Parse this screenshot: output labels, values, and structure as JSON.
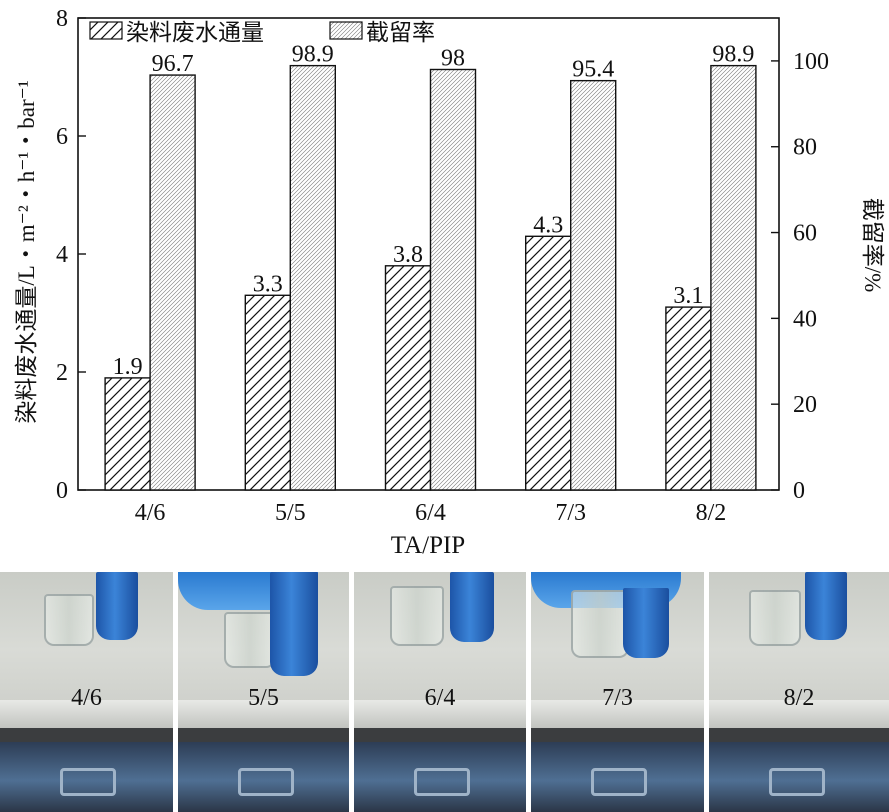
{
  "chart_data": {
    "type": "bar",
    "categories": [
      "4/6",
      "5/5",
      "6/4",
      "7/3",
      "8/2"
    ],
    "xlabel": "TA/PIP",
    "ylabel": "染料废水通量/L・m⁻²・h⁻¹・bar⁻¹",
    "y2label": "截留率/%",
    "ylim": [
      0,
      8
    ],
    "y2lim": [
      0,
      110
    ],
    "yticks": [
      "0",
      "2",
      "4",
      "6",
      "8"
    ],
    "y2ticks": [
      "0",
      "20",
      "40",
      "60",
      "80",
      "100"
    ],
    "legend_position": "top-left",
    "grid": false,
    "series": [
      {
        "name": "染料废水通量",
        "axis": "left",
        "pattern": "diagonal-hatch",
        "values": [
          1.9,
          3.3,
          3.8,
          4.3,
          3.1
        ],
        "labels": [
          "1.9",
          "3.3",
          "3.8",
          "4.3",
          "3.1"
        ]
      },
      {
        "name": "截留率",
        "axis": "right",
        "pattern": "dense-hatch",
        "values": [
          96.7,
          98.9,
          98,
          95.4,
          98.9
        ],
        "labels": [
          "96.7",
          "98.9",
          "98",
          "95.4",
          "98.9"
        ]
      }
    ]
  },
  "photos": {
    "labels": [
      "4/6",
      "5/5",
      "6/4",
      "7/3",
      "8/2"
    ]
  }
}
